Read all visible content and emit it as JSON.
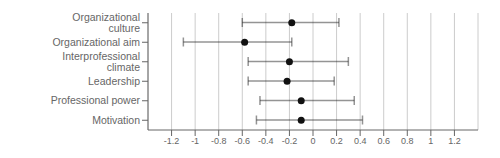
{
  "chart_data": {
    "type": "forest",
    "categories": [
      "Organizational culture",
      "Organizational aim",
      "Interprofessional climate",
      "Leadership",
      "Professional power",
      "Motivation"
    ],
    "values": [
      -0.18,
      -0.58,
      -0.2,
      -0.22,
      -0.1,
      -0.1
    ],
    "ci_low": [
      -0.6,
      -1.1,
      -0.55,
      -0.55,
      -0.45,
      -0.48
    ],
    "ci_high": [
      0.22,
      -0.18,
      0.3,
      0.18,
      0.35,
      0.42
    ],
    "xlim": [
      -1.4,
      1.4
    ],
    "xticks": [
      -1.2,
      -1.0,
      -0.8,
      -0.6,
      -0.4,
      -0.2,
      0.0,
      0.2,
      0.4,
      0.6,
      0.8,
      1.0,
      1.2
    ],
    "grid": true,
    "color": "#111111"
  }
}
